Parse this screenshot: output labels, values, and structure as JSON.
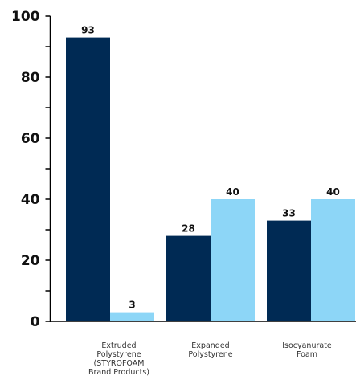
{
  "chart_data": {
    "type": "bar",
    "categories": [
      [
        "Extruded",
        "Polystyrene",
        "(STYROFOAM",
        "Brand Products)"
      ],
      [
        "Expanded",
        "Polystyrene"
      ],
      [
        "Isocyanurate",
        "Foam"
      ]
    ],
    "series": [
      {
        "values": [
          93,
          28,
          33
        ],
        "color": "#002a54"
      },
      {
        "values": [
          3,
          40,
          40
        ],
        "color": "#8dd6f7"
      }
    ],
    "ylim": [
      0,
      100
    ],
    "y_ticks": [
      0,
      20,
      40,
      60,
      80,
      100
    ],
    "value_labels": [
      [
        "93",
        "28",
        "33"
      ],
      [
        "3",
        "40",
        "40"
      ]
    ],
    "grid": false,
    "title": "",
    "xlabel": "",
    "ylabel": ""
  }
}
